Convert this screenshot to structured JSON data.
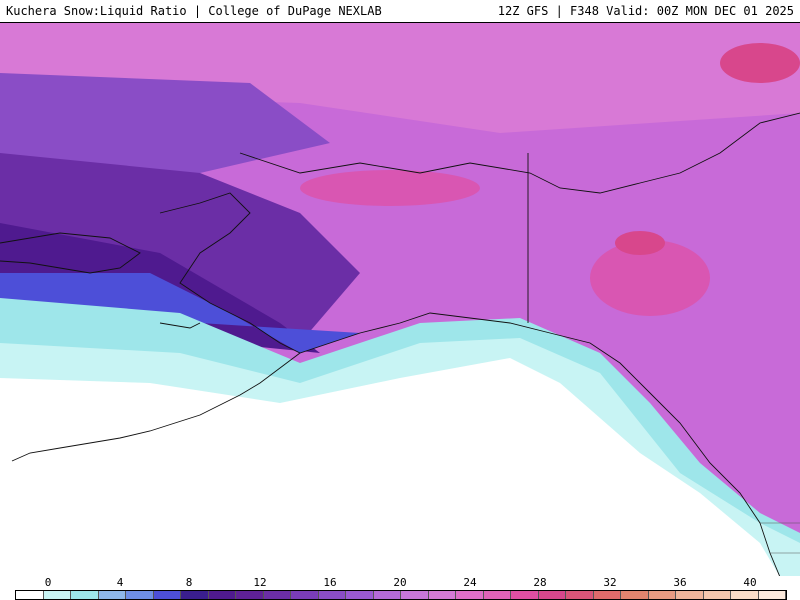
{
  "header": {
    "left_title": "Kuchera Snow:Liquid Ratio | College of DuPage NEXLAB",
    "right_title": "12Z GFS | F348 Valid: 00Z MON DEC 01 2025"
  },
  "legend": {
    "tick_labels": [
      "0",
      "4",
      "8",
      "12",
      "16",
      "20",
      "24",
      "28",
      "32",
      "36",
      "40"
    ],
    "colors": [
      "#ffffff",
      "#c8f4f4",
      "#9ee6ea",
      "#8fb8ea",
      "#6f8fe6",
      "#4d4fd8",
      "#3a1e8e",
      "#4f1a8f",
      "#5e2196",
      "#6b2ea6",
      "#7a3db8",
      "#8a4dc6",
      "#9a5ad3",
      "#b46ad8",
      "#c877d8",
      "#d67ad6",
      "#df6fc8",
      "#e063b8",
      "#df4fa2",
      "#d8478c",
      "#d95578",
      "#df6b6b",
      "#e2856f",
      "#e89b82",
      "#efb59b",
      "#f4c7ae",
      "#f8dcc8",
      "#fbe9dc"
    ]
  },
  "map": {
    "region": "Alaska and Northeast Pacific"
  }
}
